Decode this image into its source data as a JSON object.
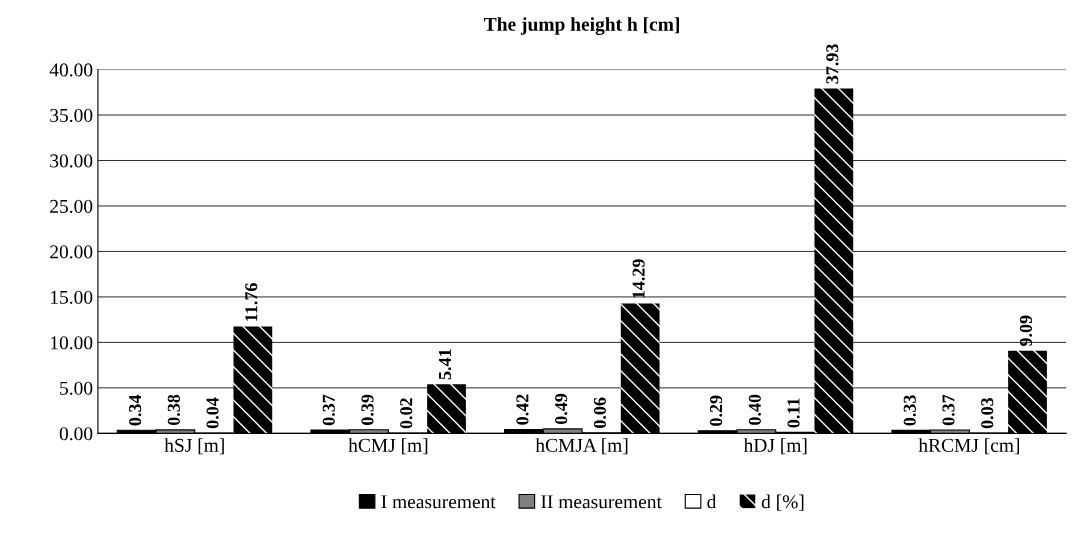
{
  "chart_data": {
    "type": "bar",
    "title": "The jump height h [cm]",
    "categories": [
      "hSJ [m]",
      "hCMJ [m]",
      "hCMJA [m]",
      "hDJ [m]",
      "hRCMJ [cm]"
    ],
    "series": [
      {
        "name": "I measurement",
        "color": "#000000",
        "values": [
          0.34,
          0.37,
          0.42,
          0.29,
          0.33
        ],
        "value_labels": [
          "0.34",
          "0.37",
          "0.42",
          "0.29",
          "0.33"
        ]
      },
      {
        "name": "II measurement",
        "color": "#808080",
        "values": [
          0.38,
          0.39,
          0.49,
          0.4,
          0.37
        ],
        "value_labels": [
          "0.38",
          "0.39",
          "0.49",
          "0.40",
          "0.37"
        ]
      },
      {
        "name": "d",
        "color": "#ffffff",
        "values": [
          0.04,
          0.02,
          0.06,
          0.11,
          0.03
        ],
        "value_labels": [
          "0.04",
          "0.02",
          "0.06",
          "0.11",
          "0.03"
        ]
      },
      {
        "name": "d [%]",
        "color": "#000000",
        "values": [
          11.76,
          5.41,
          14.29,
          37.93,
          9.09
        ],
        "value_labels": [
          "11.76",
          "5.41",
          "14.29",
          "37.93",
          "9.09"
        ]
      }
    ],
    "ylim": [
      0,
      40
    ],
    "yticks": [
      {
        "value": 0,
        "label": "0.00"
      },
      {
        "value": 5,
        "label": "5.00"
      },
      {
        "value": 10,
        "label": "10.00"
      },
      {
        "value": 15,
        "label": "15.00"
      },
      {
        "value": 20,
        "label": "20.00"
      },
      {
        "value": 25,
        "label": "25.00"
      },
      {
        "value": 30,
        "label": "30.00"
      },
      {
        "value": 35,
        "label": "35.00"
      },
      {
        "value": 40,
        "label": "40.00"
      }
    ],
    "grid": "y",
    "legend": "bottom"
  }
}
